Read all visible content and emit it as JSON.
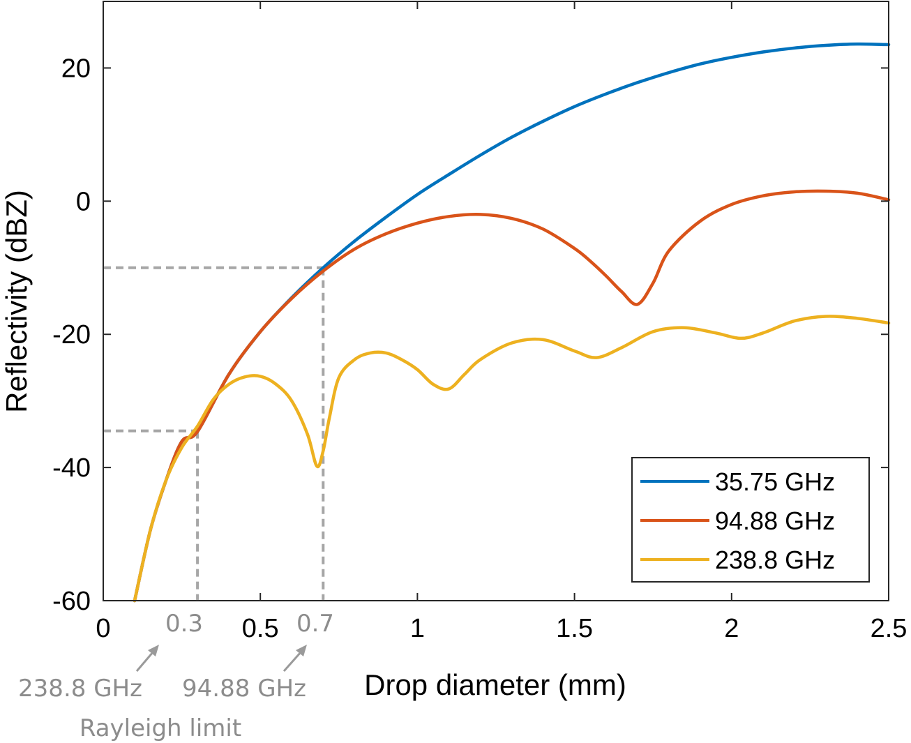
{
  "chart_data": {
    "type": "line",
    "xlabel": "Drop diameter (mm)",
    "ylabel": "Reflectivity (dBZ)",
    "xlim": [
      0,
      2.5
    ],
    "ylim": [
      -60,
      30
    ],
    "xticks": [
      0,
      0.5,
      1,
      1.5,
      2,
      2.5
    ],
    "xtick_labels": [
      "0",
      "0.5",
      "1",
      "1.5",
      "2",
      "2.5"
    ],
    "yticks": [
      -60,
      -40,
      -20,
      0,
      20
    ],
    "ytick_labels": [
      "-60",
      "-40",
      "-20",
      "0",
      "20"
    ],
    "grid": false,
    "legend_position": "bottom-right",
    "series": [
      {
        "name": "35.75 GHz",
        "color": "#0072bd",
        "x": [
          0.1,
          0.15,
          0.2,
          0.25,
          0.3,
          0.4,
          0.5,
          0.6,
          0.7,
          0.8,
          0.9,
          1.0,
          1.1,
          1.2,
          1.3,
          1.4,
          1.5,
          1.6,
          1.7,
          1.8,
          1.9,
          2.0,
          2.1,
          2.2,
          2.3,
          2.4,
          2.5
        ],
        "y": [
          -60.0,
          -49.4,
          -41.9,
          -36.1,
          -34.6,
          -26.0,
          -19.6,
          -14.5,
          -10.0,
          -6.0,
          -2.4,
          1.0,
          4.0,
          6.9,
          9.6,
          12.0,
          14.2,
          16.1,
          17.8,
          19.3,
          20.6,
          21.6,
          22.4,
          23.0,
          23.4,
          23.6,
          23.5
        ]
      },
      {
        "name": "94.88 GHz",
        "color": "#d95319",
        "x": [
          0.1,
          0.15,
          0.2,
          0.25,
          0.3,
          0.4,
          0.5,
          0.6,
          0.7,
          0.8,
          0.9,
          1.0,
          1.1,
          1.2,
          1.3,
          1.4,
          1.5,
          1.55,
          1.6,
          1.65,
          1.7,
          1.75,
          1.8,
          1.9,
          2.0,
          2.1,
          2.2,
          2.3,
          2.4,
          2.5
        ],
        "y": [
          -60.0,
          -49.4,
          -41.9,
          -36.1,
          -34.6,
          -26.0,
          -19.6,
          -14.6,
          -10.5,
          -7.2,
          -4.9,
          -3.3,
          -2.3,
          -2.0,
          -2.6,
          -4.2,
          -7.1,
          -9.0,
          -11.2,
          -13.6,
          -15.5,
          -12.3,
          -7.5,
          -3.0,
          -0.5,
          0.8,
          1.4,
          1.5,
          1.2,
          0.2
        ]
      },
      {
        "name": "238.8 GHz",
        "color": "#edb120",
        "x": [
          0.1,
          0.15,
          0.2,
          0.25,
          0.3,
          0.35,
          0.4,
          0.45,
          0.5,
          0.55,
          0.6,
          0.65,
          0.68,
          0.7,
          0.72,
          0.75,
          0.8,
          0.85,
          0.9,
          0.95,
          1.0,
          1.05,
          1.1,
          1.15,
          1.2,
          1.3,
          1.4,
          1.5,
          1.57,
          1.65,
          1.75,
          1.85,
          1.95,
          2.03,
          2.1,
          2.2,
          2.3,
          2.4,
          2.5
        ],
        "y": [
          -60.0,
          -49.4,
          -41.9,
          -37.0,
          -33.8,
          -29.8,
          -27.5,
          -26.4,
          -26.3,
          -27.5,
          -30.0,
          -35.0,
          -39.8,
          -37.5,
          -32.5,
          -26.5,
          -23.8,
          -22.8,
          -22.8,
          -23.8,
          -25.3,
          -27.5,
          -28.2,
          -26.0,
          -23.8,
          -21.3,
          -20.8,
          -22.5,
          -23.5,
          -22.0,
          -19.6,
          -19.0,
          -19.8,
          -20.6,
          -19.8,
          -18.0,
          -17.3,
          -17.6,
          -18.3
        ]
      }
    ],
    "guides": [
      {
        "x": 0.3,
        "y": -34.5
      },
      {
        "x": 0.7,
        "y": -10.0
      }
    ],
    "annotations": [
      {
        "value_label": "0.3",
        "text": "238.8 GHz"
      },
      {
        "value_label": "0.7",
        "text": "94.88 GHz"
      },
      {
        "text": "Rayleigh limit"
      }
    ]
  }
}
